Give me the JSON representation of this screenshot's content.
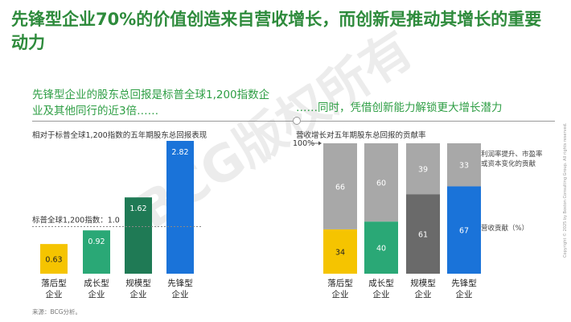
{
  "title": "先锋型企业70%的价值创造来自营收增长，而创新是推动其增长的重要动力",
  "left_subtitle": "先锋型企业的股东总回报是标普全球1,200指数企业及其他同行的近3倍……",
  "right_subtitle": "……同时，凭借创新能力解锁更大增长潜力",
  "left_chart_label": "相对于标普全球1,200指数的五年期股东总回报表现",
  "right_chart_label": "营收增长对五年期股东总回报的贡献率",
  "source": "来源：BCG分析。",
  "watermark": "BCG版权所有",
  "copyright": "Copyright © 2025 by Boston Consulting Group. All rights reserved.",
  "colors": {
    "green": "#2e9e44",
    "yellow": "#f5c400",
    "teal": "#2aa876",
    "dark_green": "#1f7a55",
    "blue": "#1a73d9",
    "gray_light": "#a8a8a8",
    "gray_dark": "#6a6a6a"
  },
  "chart_data": [
    {
      "type": "bar",
      "title": "相对于标普全球1,200指数的五年期股东总回报表现",
      "categories": [
        "落后型\n企业",
        "成长型\n企业",
        "规模型\n企业",
        "先锋型\n企业"
      ],
      "values": [
        0.63,
        0.92,
        1.62,
        2.82
      ],
      "value_labels": [
        "0.63",
        "0.92",
        "1.62",
        "2.82"
      ],
      "colors": [
        "#f5c400",
        "#2aa876",
        "#1f7a55",
        "#1a73d9"
      ],
      "reference_line": {
        "value": 1.0,
        "label": "标普全球1,200指数：1.0"
      },
      "ylim": [
        0,
        2.82
      ],
      "grid": false
    },
    {
      "type": "bar",
      "stacked": true,
      "title": "营收增长对五年期股东总回报的贡献率",
      "categories": [
        "落后型\n企业",
        "成长型\n企业",
        "规模型\n企业",
        "先锋型\n企业"
      ],
      "axis_label": "100%",
      "series": [
        {
          "name": "营收贡献（%）",
          "values": [
            34,
            40,
            61,
            67
          ],
          "colors": [
            "#f5c400",
            "#2aa876",
            "#6a6a6a",
            "#1a73d9"
          ]
        },
        {
          "name": "利润率提升、市盈率或资本变化的贡献",
          "values": [
            66,
            60,
            39,
            33
          ],
          "colors": [
            "#a8a8a8",
            "#a8a8a8",
            "#a8a8a8",
            "#a8a8a8"
          ]
        }
      ],
      "ylim": [
        0,
        100
      ],
      "grid": false
    }
  ]
}
